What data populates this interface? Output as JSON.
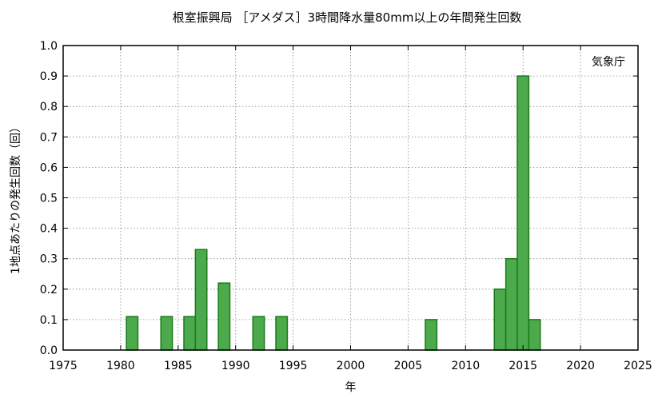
{
  "chart_data": {
    "type": "bar",
    "title": "根室振興局 ［アメダス］3時間降水量80mm以上の年間発生回数",
    "xlabel": "年",
    "ylabel": "1地点あたりの発生回数（回）",
    "annotation": "気象庁",
    "xlim": [
      1975,
      2025
    ],
    "ylim": [
      0,
      1.0
    ],
    "xticks": [
      1975,
      1980,
      1985,
      1990,
      1995,
      2000,
      2005,
      2010,
      2015,
      2020,
      2025
    ],
    "yticks": [
      0.0,
      0.1,
      0.2,
      0.3,
      0.4,
      0.5,
      0.6,
      0.7,
      0.8,
      0.9,
      1.0
    ],
    "grid": true,
    "bar_color": "#4caa4c",
    "bar_edge_color": "#1a7a1a",
    "x": [
      1981,
      1984,
      1986,
      1987,
      1989,
      1992,
      1994,
      2007,
      2013,
      2014,
      2015,
      2016
    ],
    "values": [
      0.11,
      0.11,
      0.11,
      0.33,
      0.22,
      0.11,
      0.11,
      0.1,
      0.2,
      0.3,
      0.9,
      0.1
    ]
  }
}
